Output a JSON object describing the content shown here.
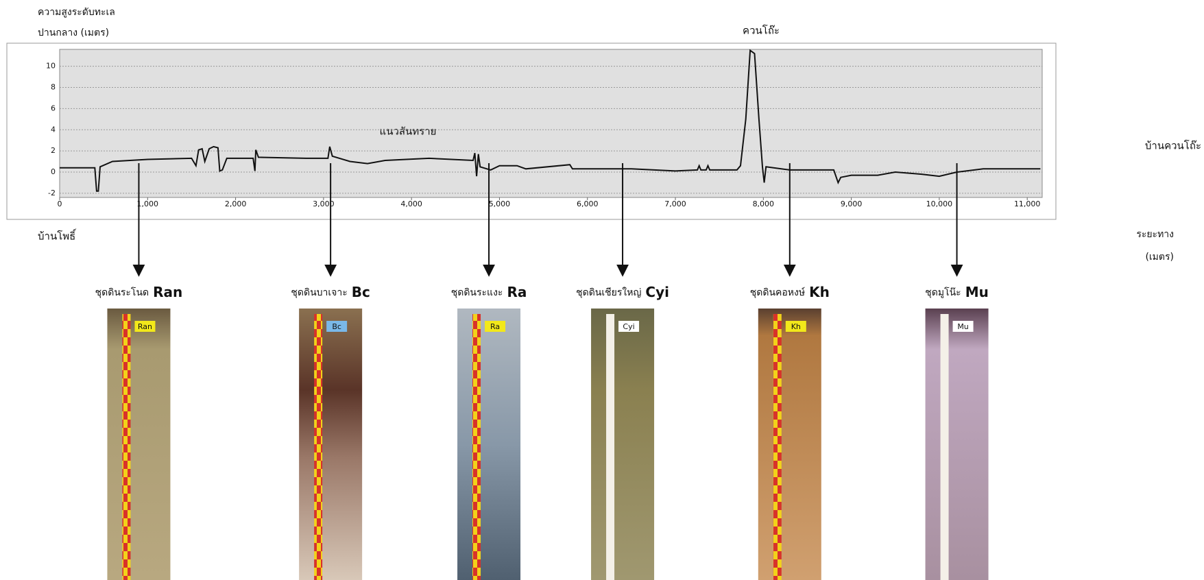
{
  "chart_data": {
    "type": "line",
    "y_title": [
      "ความสูงระดับทะเล",
      "ปานกลาง (เมตร)"
    ],
    "x_title": [
      "ระยะทาง",
      "(เมตร)"
    ],
    "annotations": {
      "peak": "ควนโถ๊ะ",
      "ridge": "แนวสันทราย",
      "start": "บ้านโพธิ์",
      "end": "บ้านควนโถ๊ะ"
    },
    "color": "#111111",
    "x": [
      0,
      400,
      420,
      440,
      460,
      600,
      1000,
      1500,
      1550,
      1580,
      1620,
      1650,
      1700,
      1750,
      1800,
      1820,
      1850,
      1900,
      2200,
      2220,
      2230,
      2260,
      2800,
      3050,
      3070,
      3100,
      3300,
      3500,
      3700,
      4200,
      4700,
      4720,
      4740,
      4760,
      4780,
      4900,
      5000,
      5200,
      5300,
      5800,
      5830,
      6500,
      7000,
      7250,
      7270,
      7290,
      7350,
      7370,
      7390,
      7700,
      7740,
      7800,
      7850,
      7900,
      7950,
      7990,
      8010,
      8030,
      8300,
      8800,
      8850,
      8880,
      9000,
      9300,
      9500,
      9800,
      10000,
      10200,
      10400,
      10500,
      11150
    ],
    "values": [
      0.4,
      0.4,
      -1.8,
      -1.8,
      0.5,
      1.0,
      1.2,
      1.3,
      0.6,
      2.1,
      2.2,
      1.0,
      2.2,
      2.4,
      2.3,
      0.1,
      0.2,
      1.3,
      1.3,
      0.1,
      2.1,
      1.4,
      1.3,
      1.3,
      2.4,
      1.5,
      1.0,
      0.8,
      1.1,
      1.3,
      1.1,
      1.8,
      -0.4,
      1.7,
      0.5,
      0.2,
      0.6,
      0.6,
      0.3,
      0.7,
      0.3,
      0.3,
      0.1,
      0.2,
      0.6,
      0.2,
      0.2,
      0.6,
      0.2,
      0.2,
      0.6,
      5,
      11.5,
      11.2,
      5,
      0.5,
      -1,
      0.5,
      0.2,
      0.2,
      -1,
      -0.5,
      -0.3,
      -0.3,
      0,
      -0.2,
      -0.4,
      0,
      0.2,
      0.3,
      0.3
    ],
    "xlim": [
      0,
      11170
    ],
    "ylim": [
      -2.4,
      11.6
    ],
    "xticks": [
      0,
      {
        "value": 1000,
        "label": "1,000"
      },
      {
        "value": 2000,
        "label": "2,000"
      },
      {
        "value": 3000,
        "label": "3,000"
      },
      {
        "value": 4000,
        "label": "4,000"
      },
      {
        "value": 5000,
        "label": "5,000"
      },
      {
        "value": 6000,
        "label": "6,000"
      },
      {
        "value": 7000,
        "label": "7,000"
      },
      {
        "value": 8000,
        "label": "8,000"
      },
      {
        "value": 9000,
        "label": "9,000"
      },
      {
        "value": 10000,
        "label": "10,000"
      },
      {
        "value": 11000,
        "label": "11,000"
      }
    ],
    "yticks": [
      -2,
      0,
      2,
      4,
      6,
      8,
      10
    ],
    "grid": true,
    "soils": [
      {
        "name": "ชุดดินระโนด",
        "code": "Ran",
        "x": 900
      },
      {
        "name": "ชุดดินบาเจาะ",
        "code": "Bc",
        "x": 3080
      },
      {
        "name": "ชุดดินระแงะ",
        "code": "Ra",
        "x": 4880
      },
      {
        "name": "ชุดดินเชียรใหญ่",
        "code": "Cyi",
        "x": 6400
      },
      {
        "name": "ชุดดินคอหงษ์",
        "code": "Kh",
        "x": 8300
      },
      {
        "name": "ชุดมูโน๊ะ",
        "code": "Mu",
        "x": 10200
      }
    ]
  }
}
